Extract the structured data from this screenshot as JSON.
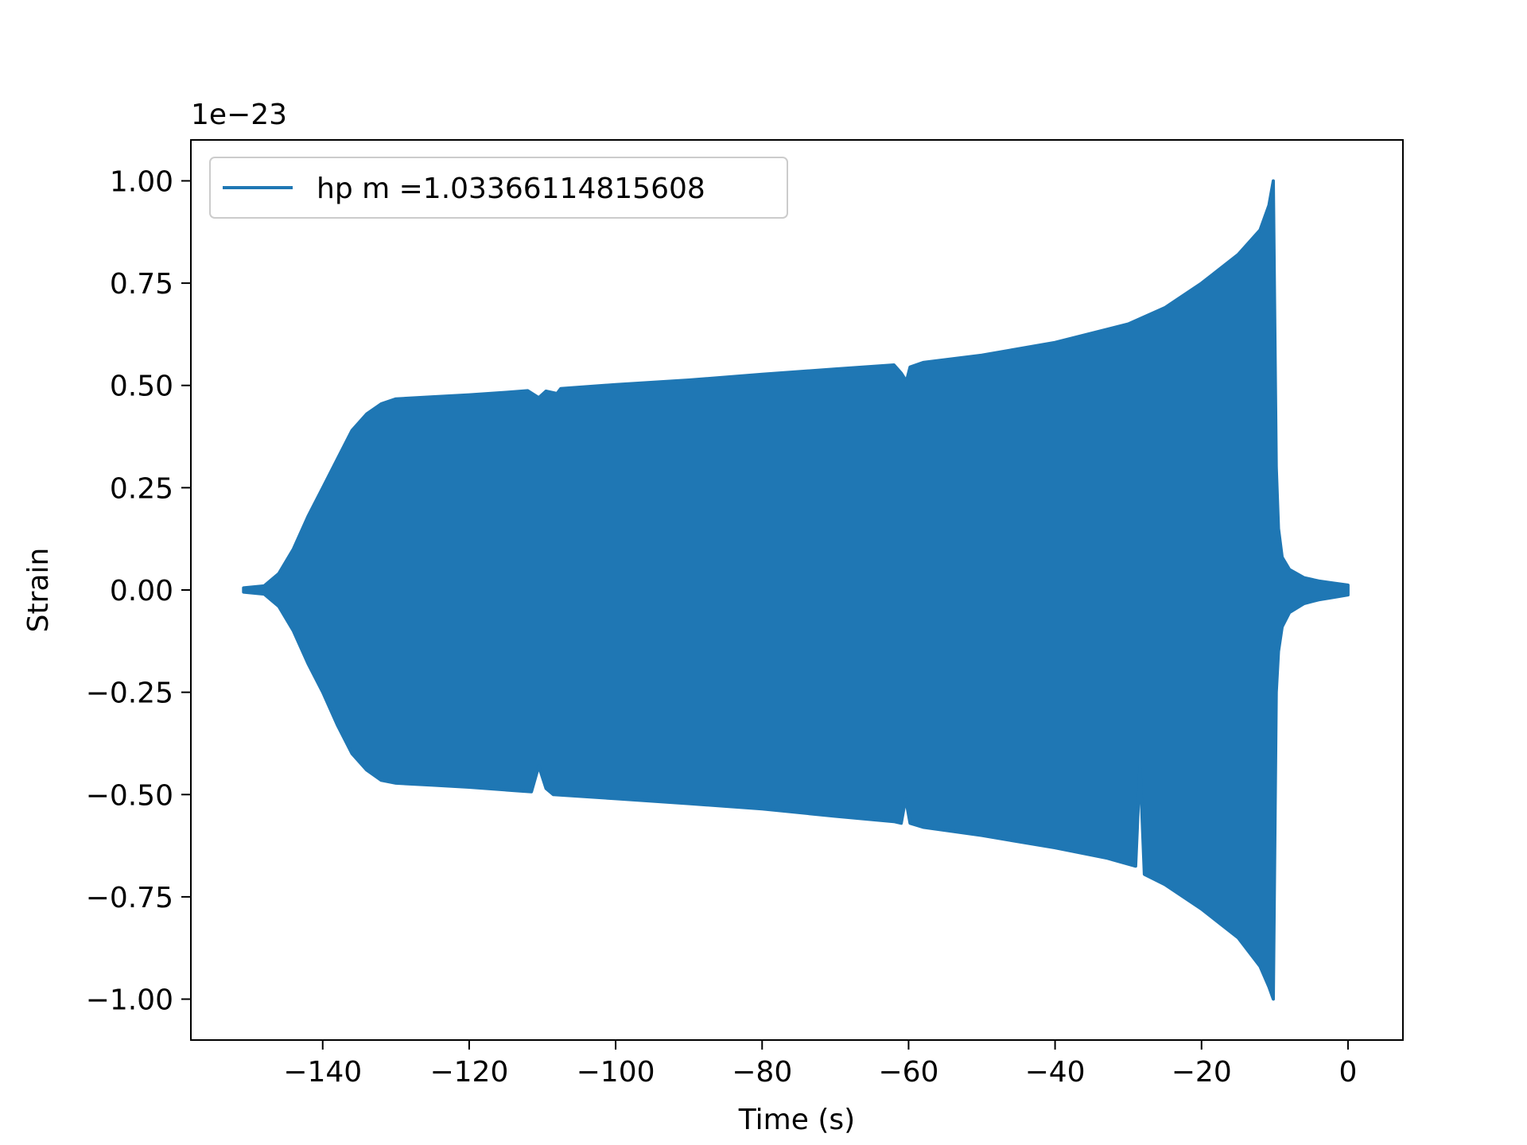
{
  "chart_data": {
    "type": "area",
    "title": "",
    "xlabel": "Time (s)",
    "ylabel": "Strain",
    "y_offset_label": "1e−23",
    "xlim": [
      -158,
      7.5
    ],
    "ylim": [
      -1.1,
      1.1
    ],
    "x_ticks": [
      -140,
      -120,
      -100,
      -80,
      -60,
      -40,
      -20,
      0
    ],
    "x_tick_labels": [
      "−140",
      "−120",
      "−100",
      "−80",
      "−60",
      "−40",
      "−20",
      "0"
    ],
    "y_ticks": [
      1.0,
      0.75,
      0.5,
      0.25,
      0.0,
      -0.25,
      -0.5,
      -0.75,
      -1.0
    ],
    "y_tick_labels": [
      "1.00",
      "0.75",
      "0.50",
      "0.25",
      "0.00",
      "−0.25",
      "−0.50",
      "−0.75",
      "−1.00"
    ],
    "grid": false,
    "legend_position": "upper-left",
    "series": [
      {
        "name": "hp m =1.03366114815608",
        "color": "#1f77b4",
        "note_unit_scale": 1e-23,
        "upper_envelope": [
          [
            -150.8,
            0.005
          ],
          [
            -148,
            0.01
          ],
          [
            -146,
            0.04
          ],
          [
            -144,
            0.1
          ],
          [
            -142,
            0.18
          ],
          [
            -140,
            0.25
          ],
          [
            -138,
            0.32
          ],
          [
            -136,
            0.39
          ],
          [
            -134,
            0.43
          ],
          [
            -132,
            0.455
          ],
          [
            -130,
            0.467
          ],
          [
            -125,
            0.472
          ],
          [
            -120,
            0.477
          ],
          [
            -115,
            0.483
          ],
          [
            -112,
            0.487
          ],
          [
            -110.5,
            0.47
          ],
          [
            -109.5,
            0.486
          ],
          [
            -108,
            0.48
          ],
          [
            -107.5,
            0.492
          ],
          [
            -100,
            0.502
          ],
          [
            -90,
            0.513
          ],
          [
            -80,
            0.527
          ],
          [
            -70,
            0.54
          ],
          [
            -62,
            0.55
          ],
          [
            -61,
            0.53
          ],
          [
            -60.3,
            0.51
          ],
          [
            -59.8,
            0.545
          ],
          [
            -58,
            0.556
          ],
          [
            -50,
            0.574
          ],
          [
            -40,
            0.605
          ],
          [
            -30,
            0.65
          ],
          [
            -25,
            0.69
          ],
          [
            -20,
            0.75
          ],
          [
            -15,
            0.82
          ],
          [
            -12,
            0.88
          ],
          [
            -10.8,
            0.94
          ],
          [
            -10.2,
            1.0
          ],
          [
            -9.8,
            0.3
          ],
          [
            -9.5,
            0.15
          ],
          [
            -9,
            0.08
          ],
          [
            -8,
            0.05
          ],
          [
            -6,
            0.03
          ],
          [
            -4,
            0.022
          ],
          [
            -2,
            0.017
          ],
          [
            0,
            0.012
          ]
        ],
        "lower_envelope": [
          [
            -150.8,
            -0.005
          ],
          [
            -148,
            -0.01
          ],
          [
            -146,
            -0.04
          ],
          [
            -144,
            -0.1
          ],
          [
            -142,
            -0.18
          ],
          [
            -140,
            -0.25
          ],
          [
            -138,
            -0.33
          ],
          [
            -136,
            -0.4
          ],
          [
            -134,
            -0.44
          ],
          [
            -132,
            -0.465
          ],
          [
            -130,
            -0.472
          ],
          [
            -125,
            -0.477
          ],
          [
            -120,
            -0.482
          ],
          [
            -114,
            -0.49
          ],
          [
            -111.5,
            -0.493
          ],
          [
            -110.5,
            -0.43
          ],
          [
            -109.5,
            -0.485
          ],
          [
            -108.5,
            -0.5
          ],
          [
            -100,
            -0.51
          ],
          [
            -90,
            -0.522
          ],
          [
            -80,
            -0.535
          ],
          [
            -70,
            -0.553
          ],
          [
            -62,
            -0.566
          ],
          [
            -61,
            -0.57
          ],
          [
            -60.4,
            -0.51
          ],
          [
            -59.8,
            -0.57
          ],
          [
            -58,
            -0.58
          ],
          [
            -50,
            -0.6
          ],
          [
            -40,
            -0.63
          ],
          [
            -33,
            -0.655
          ],
          [
            -29,
            -0.675
          ],
          [
            -28.4,
            -0.43
          ],
          [
            -27.8,
            -0.695
          ],
          [
            -25,
            -0.72
          ],
          [
            -20,
            -0.78
          ],
          [
            -15,
            -0.85
          ],
          [
            -12,
            -0.92
          ],
          [
            -10.8,
            -0.97
          ],
          [
            -10.2,
            -1.0
          ],
          [
            -9.8,
            -0.25
          ],
          [
            -9.5,
            -0.15
          ],
          [
            -9,
            -0.09
          ],
          [
            -8,
            -0.055
          ],
          [
            -6,
            -0.033
          ],
          [
            -4,
            -0.024
          ],
          [
            -2,
            -0.018
          ],
          [
            0,
            -0.012
          ]
        ]
      }
    ]
  }
}
